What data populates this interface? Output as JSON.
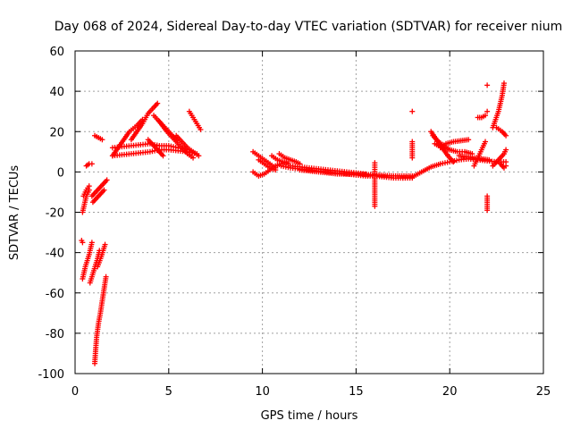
{
  "chart_data": {
    "type": "scatter",
    "title": "Day 068 of 2024, Sidereal Day-to-day VTEC variation (SDTVAR) for receiver nium",
    "xlabel": "GPS time / hours",
    "ylabel": "SDTVAR / TECUs",
    "xlim": [
      0,
      25
    ],
    "ylim": [
      -100,
      60
    ],
    "xticks": [
      0,
      5,
      10,
      15,
      20,
      25
    ],
    "yticks": [
      -100,
      -80,
      -60,
      -40,
      -20,
      0,
      20,
      40,
      60
    ],
    "grid": true,
    "legend": "none",
    "marker": "+",
    "color": "#ff0000",
    "series": [
      {
        "name": "SDTVAR",
        "segments": [
          [
            [
              0.35,
              -34
            ],
            [
              0.4,
              -35
            ]
          ],
          [
            [
              0.4,
              -53
            ],
            [
              0.55,
              -47
            ],
            [
              0.75,
              -41
            ],
            [
              0.9,
              -35
            ]
          ],
          [
            [
              0.8,
              -55
            ],
            [
              1.0,
              -49
            ],
            [
              1.2,
              -43
            ],
            [
              1.3,
              -39
            ]
          ],
          [
            [
              1.2,
              -47
            ],
            [
              1.4,
              -42
            ],
            [
              1.6,
              -36
            ]
          ],
          [
            [
              1.05,
              -95
            ],
            [
              1.1,
              -88
            ],
            [
              1.15,
              -82
            ],
            [
              1.25,
              -75
            ],
            [
              1.35,
              -70
            ],
            [
              1.45,
              -64
            ],
            [
              1.55,
              -58
            ],
            [
              1.65,
              -52
            ]
          ],
          [
            [
              0.4,
              -20
            ],
            [
              0.5,
              -16
            ],
            [
              0.6,
              -12
            ],
            [
              0.75,
              -9
            ]
          ],
          [
            [
              0.45,
              -12
            ],
            [
              0.6,
              -9
            ],
            [
              0.75,
              -7
            ]
          ],
          [
            [
              0.9,
              -12
            ],
            [
              1.1,
              -10
            ],
            [
              1.3,
              -8
            ],
            [
              1.5,
              -6
            ],
            [
              1.7,
              -4
            ]
          ],
          [
            [
              0.95,
              -15
            ],
            [
              1.15,
              -13
            ],
            [
              1.35,
              -11
            ],
            [
              1.55,
              -9
            ]
          ],
          [
            [
              0.6,
              3
            ],
            [
              0.75,
              4
            ],
            [
              0.9,
              4
            ]
          ],
          [
            [
              1.05,
              18
            ],
            [
              1.25,
              17
            ],
            [
              1.45,
              16
            ]
          ],
          [
            [
              2.0,
              8
            ],
            [
              2.5,
              8.5
            ],
            [
              3.0,
              9
            ],
            [
              3.5,
              9.5
            ],
            [
              4.0,
              10
            ],
            [
              4.5,
              11
            ],
            [
              5.0,
              11
            ],
            [
              5.5,
              10.5
            ],
            [
              6.0,
              10
            ],
            [
              6.5,
              9
            ]
          ],
          [
            [
              2.0,
              12
            ],
            [
              2.5,
              12.5
            ],
            [
              3.0,
              13
            ],
            [
              3.5,
              13.5
            ],
            [
              4.0,
              14
            ],
            [
              4.5,
              13
            ],
            [
              5.0,
              13
            ],
            [
              5.5,
              12
            ],
            [
              6.0,
              11
            ]
          ],
          [
            [
              2.0,
              8
            ],
            [
              2.3,
              12
            ],
            [
              2.6,
              16
            ],
            [
              2.9,
              20
            ],
            [
              3.3,
              23
            ],
            [
              3.6,
              26
            ]
          ],
          [
            [
              3.0,
              16
            ],
            [
              3.3,
              20
            ],
            [
              3.6,
              24
            ],
            [
              3.9,
              29
            ],
            [
              4.2,
              32
            ],
            [
              4.4,
              34
            ]
          ],
          [
            [
              3.9,
              16
            ],
            [
              4.2,
              13
            ],
            [
              4.5,
              10
            ],
            [
              4.7,
              8
            ]
          ],
          [
            [
              4.2,
              28
            ],
            [
              4.6,
              24
            ],
            [
              5.0,
              20
            ],
            [
              5.4,
              16
            ]
          ],
          [
            [
              4.5,
              25
            ],
            [
              4.9,
              20
            ],
            [
              5.3,
              16
            ],
            [
              5.7,
              12
            ],
            [
              6.0,
              9
            ],
            [
              6.3,
              7
            ]
          ],
          [
            [
              5.4,
              18
            ],
            [
              5.7,
              15
            ],
            [
              6.0,
              12
            ],
            [
              6.3,
              10
            ],
            [
              6.6,
              8
            ]
          ],
          [
            [
              6.1,
              30
            ],
            [
              6.3,
              27
            ],
            [
              6.5,
              24
            ],
            [
              6.7,
              21
            ]
          ],
          [
            [
              9.5,
              10
            ],
            [
              9.8,
              8
            ],
            [
              10.1,
              6
            ],
            [
              10.4,
              4
            ],
            [
              10.7,
              2
            ]
          ],
          [
            [
              9.5,
              0
            ],
            [
              9.8,
              -2
            ],
            [
              10.1,
              -1
            ],
            [
              10.4,
              1
            ],
            [
              10.7,
              3
            ],
            [
              11.0,
              4
            ],
            [
              11.3,
              5
            ]
          ],
          [
            [
              9.8,
              6
            ],
            [
              10.1,
              4
            ],
            [
              10.4,
              2
            ],
            [
              10.7,
              1
            ]
          ],
          [
            [
              10.5,
              8
            ],
            [
              10.8,
              6
            ],
            [
              11.1,
              5
            ],
            [
              11.4,
              4
            ]
          ],
          [
            [
              10.9,
              9
            ],
            [
              11.2,
              7
            ],
            [
              11.5,
              6
            ],
            [
              11.8,
              5
            ],
            [
              12.0,
              4
            ]
          ],
          [
            [
              11.5,
              3
            ],
            [
              12.0,
              2.5
            ],
            [
              12.5,
              2
            ],
            [
              13.0,
              1.5
            ],
            [
              13.5,
              1
            ],
            [
              14.0,
              0.5
            ],
            [
              14.5,
              0
            ],
            [
              15.0,
              -0.5
            ],
            [
              15.5,
              -1
            ]
          ],
          [
            [
              11.0,
              3
            ],
            [
              11.5,
              2
            ],
            [
              12.0,
              1.5
            ],
            [
              12.5,
              1
            ],
            [
              13.0,
              0.5
            ],
            [
              13.5,
              0
            ],
            [
              14.0,
              -0.5
            ],
            [
              14.5,
              -1
            ],
            [
              15.0,
              -1.5
            ],
            [
              15.5,
              -2
            ],
            [
              16.0,
              -2
            ],
            [
              16.5,
              -2.5
            ],
            [
              17.0,
              -3
            ],
            [
              17.5,
              -3
            ],
            [
              18.0,
              -3
            ]
          ],
          [
            [
              12.0,
              1
            ],
            [
              13.0,
              0
            ],
            [
              14.0,
              -1
            ],
            [
              15.0,
              -1
            ],
            [
              16.0,
              -1.5
            ],
            [
              17.0,
              -2
            ],
            [
              18.0,
              -2
            ]
          ],
          [
            [
              16.0,
              4.5
            ],
            [
              16.0,
              -2
            ],
            [
              16.0,
              -7
            ],
            [
              16.0,
              -12
            ],
            [
              16.0,
              -17
            ]
          ],
          [
            [
              18.0,
              30
            ],
            [
              18.0,
              15
            ],
            [
              18.0,
              7
            ]
          ],
          [
            [
              17.5,
              -3
            ],
            [
              18.0,
              -2.5
            ],
            [
              18.5,
              0
            ],
            [
              19.0,
              2.5
            ],
            [
              19.5,
              4
            ],
            [
              20.0,
              5
            ],
            [
              20.5,
              6
            ],
            [
              21.0,
              6.5
            ],
            [
              21.5,
              6
            ],
            [
              22.0,
              5.5
            ],
            [
              22.5,
              5
            ],
            [
              23.0,
              5
            ]
          ],
          [
            [
              19.0,
              20
            ],
            [
              19.3,
              16
            ],
            [
              19.6,
              12
            ],
            [
              19.9,
              8
            ],
            [
              20.2,
              5
            ]
          ],
          [
            [
              19.1,
              18
            ],
            [
              19.4,
              15
            ],
            [
              19.7,
              13
            ],
            [
              20.0,
              11
            ]
          ],
          [
            [
              19.2,
              14
            ],
            [
              19.6,
              12
            ],
            [
              20.0,
              11
            ],
            [
              20.4,
              10
            ],
            [
              20.8,
              10
            ],
            [
              21.2,
              9
            ]
          ],
          [
            [
              19.5,
              12
            ],
            [
              19.8,
              14
            ],
            [
              20.2,
              15
            ],
            [
              20.6,
              15.5
            ],
            [
              21.0,
              16
            ]
          ],
          [
            [
              20.5,
              8
            ],
            [
              20.9,
              7.5
            ],
            [
              21.3,
              7
            ],
            [
              21.7,
              6.5
            ],
            [
              22.1,
              6
            ]
          ],
          [
            [
              21.3,
              3
            ],
            [
              21.5,
              7
            ],
            [
              21.7,
              11
            ],
            [
              21.9,
              15
            ]
          ],
          [
            [
              21.5,
              27
            ],
            [
              21.7,
              27
            ],
            [
              21.9,
              28
            ]
          ],
          [
            [
              22.0,
              43
            ],
            [
              22.0,
              30
            ],
            [
              22.0,
              -12
            ],
            [
              22.0,
              -19
            ]
          ],
          [
            [
              22.3,
              3
            ],
            [
              22.6,
              6
            ],
            [
              22.9,
              9
            ],
            [
              23.0,
              11
            ]
          ],
          [
            [
              22.3,
              22
            ],
            [
              22.6,
              30
            ],
            [
              22.8,
              38
            ],
            [
              22.9,
              44
            ]
          ],
          [
            [
              22.5,
              22
            ],
            [
              22.8,
              20
            ],
            [
              23.0,
              18
            ]
          ],
          [
            [
              22.7,
              4
            ],
            [
              22.9,
              2
            ],
            [
              23.0,
              3
            ]
          ]
        ]
      }
    ]
  }
}
